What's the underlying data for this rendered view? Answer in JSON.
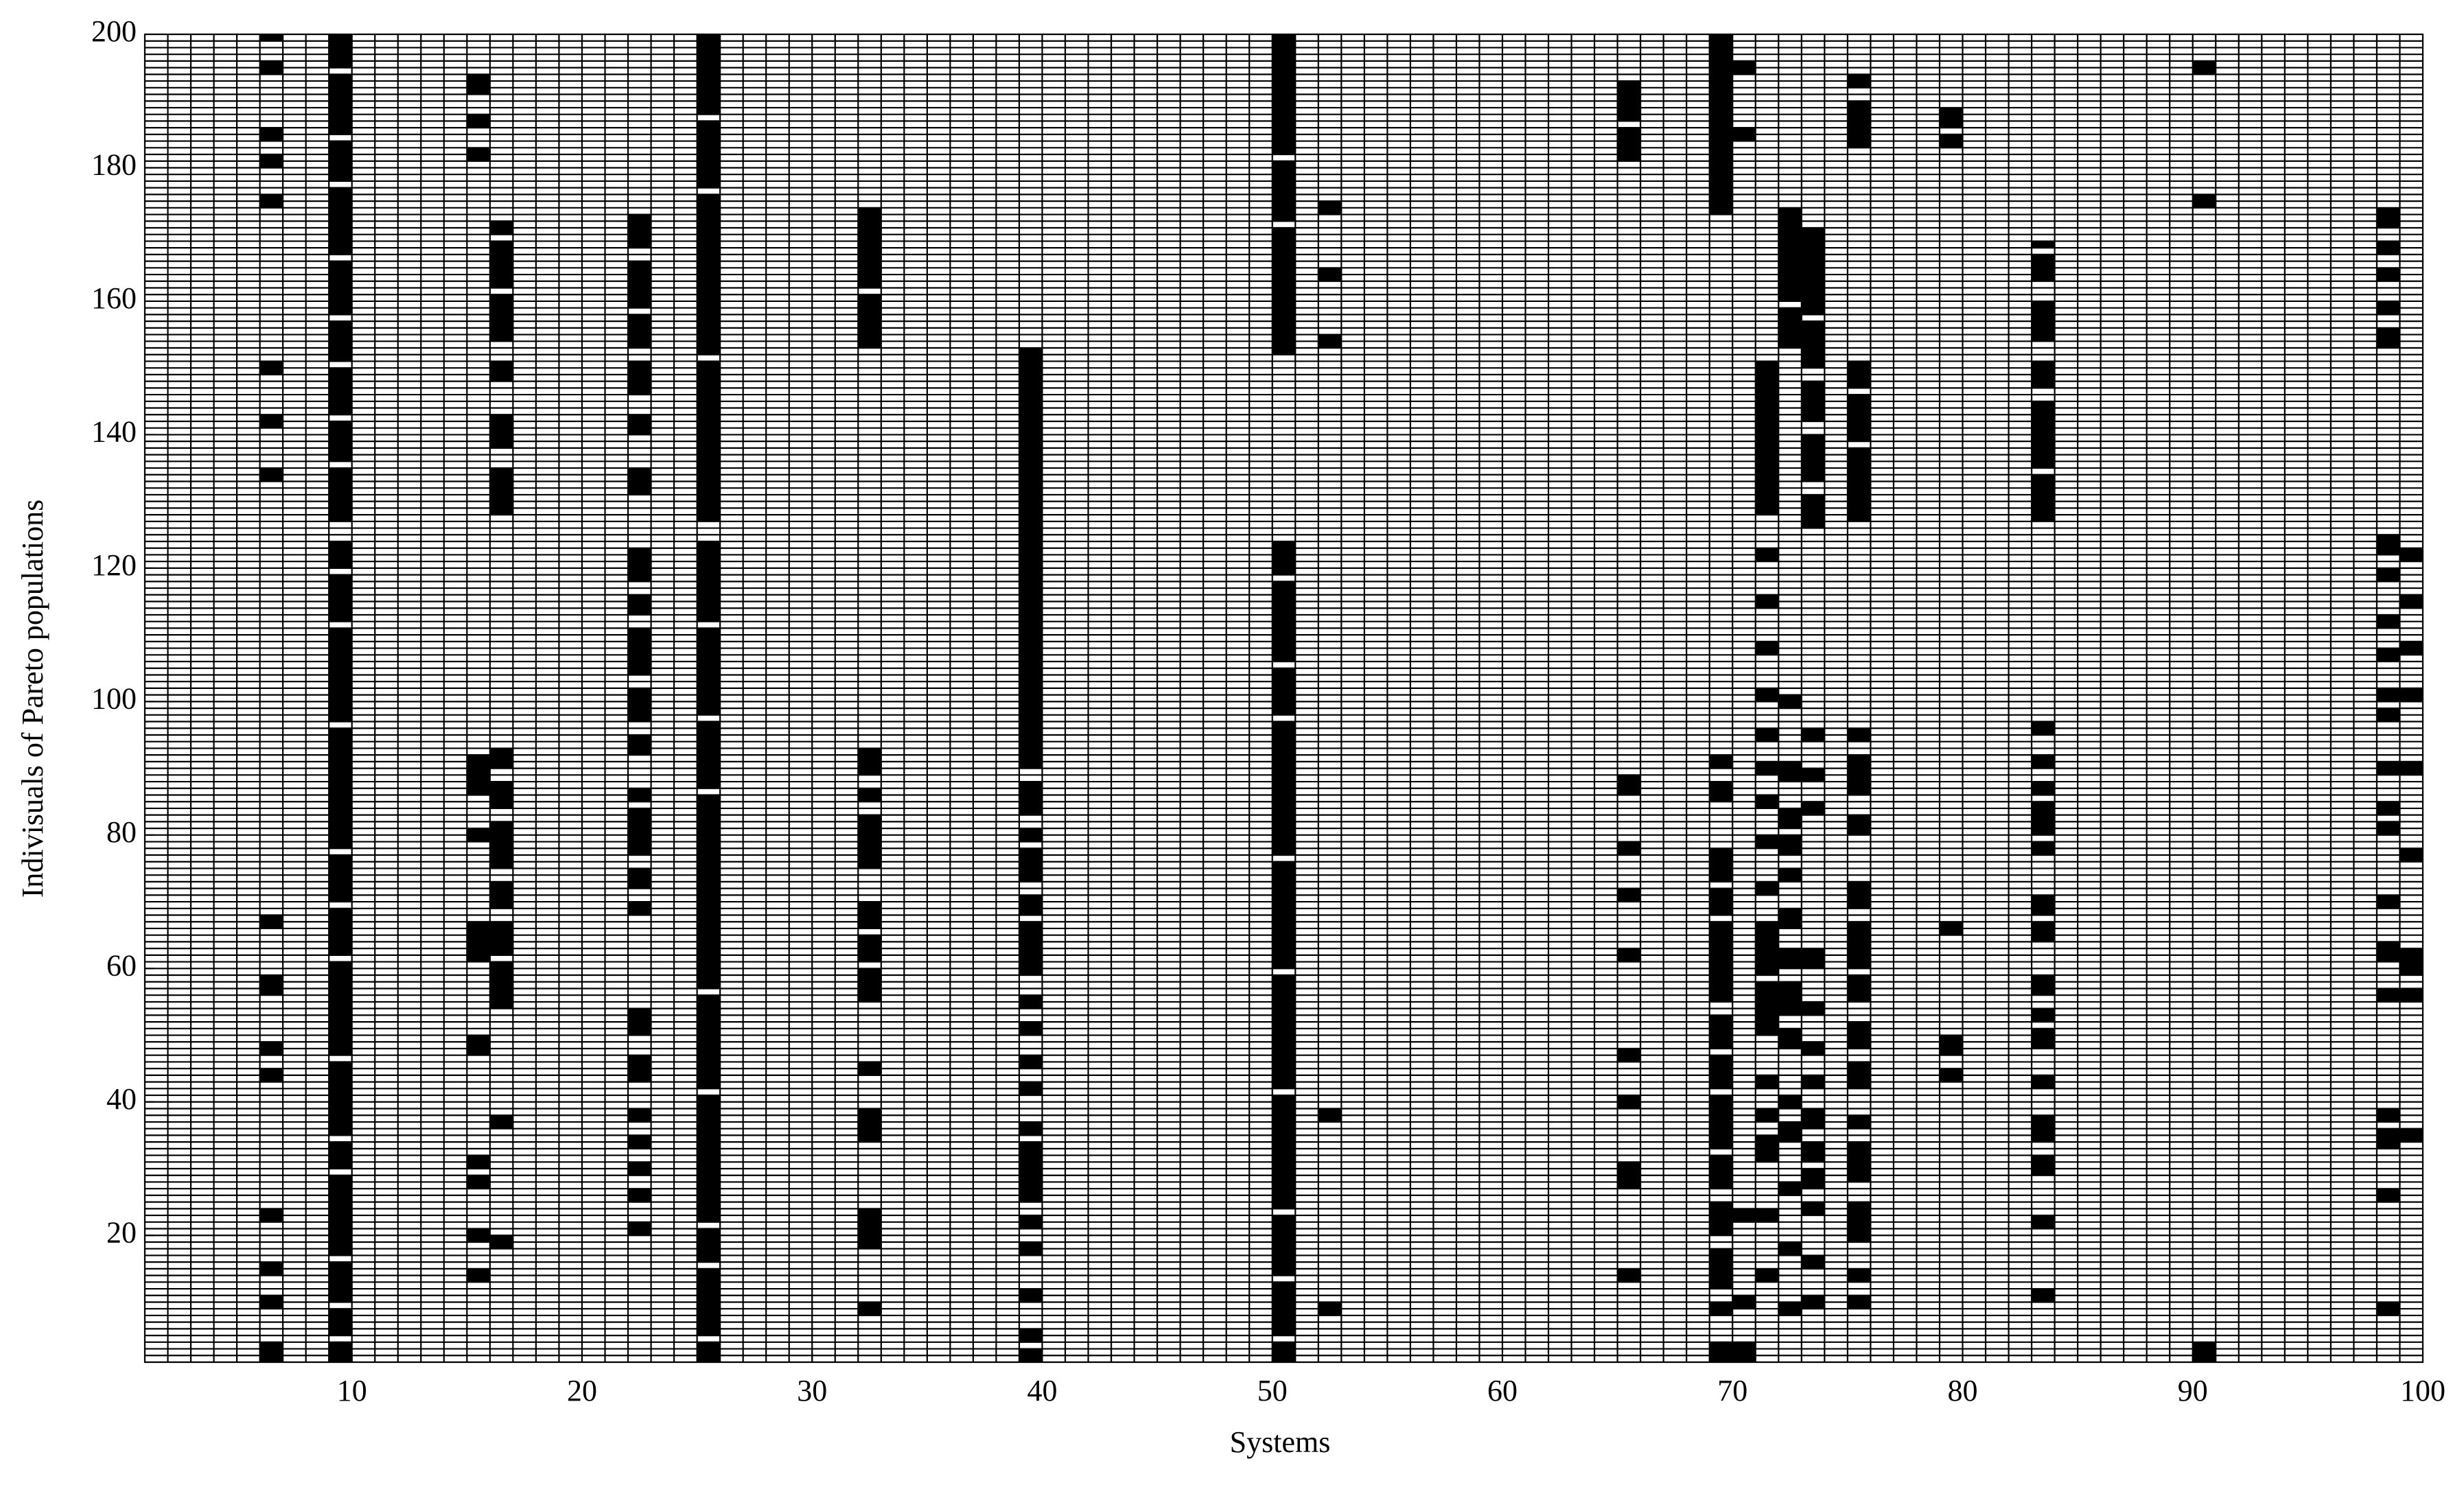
{
  "chart_data": {
    "type": "heatmap",
    "xlabel": "Systems",
    "ylabel": "Indivisuals of Pareto populations",
    "xlim": [
      1,
      100
    ],
    "ylim": [
      1,
      200
    ],
    "xticks": [
      10,
      20,
      30,
      40,
      50,
      60,
      70,
      80,
      90,
      100
    ],
    "yticks": [
      20,
      40,
      60,
      80,
      100,
      120,
      140,
      160,
      180,
      200
    ],
    "color": "#000000",
    "runs": [
      [
        6,
        1,
        3
      ],
      [
        6,
        9,
        10
      ],
      [
        6,
        14,
        15
      ],
      [
        6,
        22,
        23
      ],
      [
        6,
        43,
        44
      ],
      [
        6,
        47,
        48
      ],
      [
        6,
        56,
        58
      ],
      [
        6,
        66,
        67
      ],
      [
        6,
        133,
        134
      ],
      [
        6,
        141,
        142
      ],
      [
        6,
        149,
        150
      ],
      [
        6,
        174,
        175
      ],
      [
        6,
        180,
        181
      ],
      [
        6,
        184,
        185
      ],
      [
        6,
        194,
        195
      ],
      [
        6,
        199,
        199
      ],
      [
        9,
        1,
        3
      ],
      [
        9,
        5,
        8
      ],
      [
        9,
        10,
        15
      ],
      [
        9,
        17,
        28
      ],
      [
        9,
        30,
        33
      ],
      [
        9,
        35,
        45
      ],
      [
        9,
        47,
        60
      ],
      [
        9,
        62,
        68
      ],
      [
        9,
        70,
        76
      ],
      [
        9,
        78,
        95
      ],
      [
        9,
        97,
        110
      ],
      [
        9,
        112,
        118
      ],
      [
        9,
        120,
        123
      ],
      [
        9,
        127,
        134
      ],
      [
        9,
        136,
        141
      ],
      [
        9,
        143,
        149
      ],
      [
        9,
        151,
        156
      ],
      [
        9,
        158,
        165
      ],
      [
        9,
        167,
        176
      ],
      [
        9,
        178,
        183
      ],
      [
        9,
        185,
        193
      ],
      [
        9,
        195,
        199
      ],
      [
        15,
        13,
        14
      ],
      [
        15,
        19,
        20
      ],
      [
        15,
        27,
        28
      ],
      [
        15,
        30,
        31
      ],
      [
        15,
        47,
        49
      ],
      [
        15,
        61,
        66
      ],
      [
        15,
        79,
        80
      ],
      [
        15,
        86,
        91
      ],
      [
        15,
        181,
        182
      ],
      [
        15,
        186,
        187
      ],
      [
        15,
        191,
        193
      ],
      [
        16,
        18,
        19
      ],
      [
        16,
        36,
        37
      ],
      [
        16,
        54,
        60
      ],
      [
        16,
        62,
        66
      ],
      [
        16,
        69,
        72
      ],
      [
        16,
        75,
        81
      ],
      [
        16,
        84,
        87
      ],
      [
        16,
        90,
        92
      ],
      [
        16,
        128,
        134
      ],
      [
        16,
        138,
        142
      ],
      [
        16,
        148,
        150
      ],
      [
        16,
        154,
        160
      ],
      [
        16,
        162,
        168
      ],
      [
        16,
        170,
        171
      ],
      [
        22,
        20,
        21
      ],
      [
        22,
        25,
        26
      ],
      [
        22,
        29,
        30
      ],
      [
        22,
        33,
        34
      ],
      [
        22,
        37,
        38
      ],
      [
        22,
        43,
        46
      ],
      [
        22,
        50,
        53
      ],
      [
        22,
        68,
        69
      ],
      [
        22,
        72,
        74
      ],
      [
        22,
        77,
        83
      ],
      [
        22,
        85,
        86
      ],
      [
        22,
        92,
        94
      ],
      [
        22,
        97,
        101
      ],
      [
        22,
        104,
        110
      ],
      [
        22,
        113,
        115
      ],
      [
        22,
        118,
        122
      ],
      [
        22,
        131,
        134
      ],
      [
        22,
        140,
        142
      ],
      [
        22,
        146,
        150
      ],
      [
        22,
        153,
        157
      ],
      [
        22,
        159,
        165
      ],
      [
        22,
        168,
        172
      ],
      [
        25,
        1,
        3
      ],
      [
        25,
        5,
        14
      ],
      [
        25,
        16,
        20
      ],
      [
        25,
        22,
        40
      ],
      [
        25,
        42,
        55
      ],
      [
        25,
        57,
        85
      ],
      [
        25,
        87,
        96
      ],
      [
        25,
        98,
        110
      ],
      [
        25,
        112,
        123
      ],
      [
        25,
        127,
        150
      ],
      [
        25,
        152,
        175
      ],
      [
        25,
        177,
        186
      ],
      [
        25,
        188,
        199
      ],
      [
        32,
        8,
        9
      ],
      [
        32,
        18,
        23
      ],
      [
        32,
        34,
        38
      ],
      [
        32,
        44,
        45
      ],
      [
        32,
        55,
        59
      ],
      [
        32,
        61,
        64
      ],
      [
        32,
        66,
        69
      ],
      [
        32,
        75,
        82
      ],
      [
        32,
        85,
        86
      ],
      [
        32,
        89,
        92
      ],
      [
        32,
        153,
        160
      ],
      [
        32,
        162,
        173
      ],
      [
        39,
        1,
        2
      ],
      [
        39,
        4,
        5
      ],
      [
        39,
        10,
        11
      ],
      [
        39,
        17,
        18
      ],
      [
        39,
        21,
        22
      ],
      [
        39,
        25,
        33
      ],
      [
        39,
        35,
        36
      ],
      [
        39,
        41,
        42
      ],
      [
        39,
        45,
        46
      ],
      [
        39,
        50,
        51
      ],
      [
        39,
        54,
        55
      ],
      [
        39,
        59,
        66
      ],
      [
        39,
        68,
        70
      ],
      [
        39,
        73,
        77
      ],
      [
        39,
        79,
        80
      ],
      [
        39,
        83,
        87
      ],
      [
        39,
        90,
        152
      ],
      [
        50,
        1,
        3
      ],
      [
        50,
        5,
        12
      ],
      [
        50,
        14,
        22
      ],
      [
        50,
        24,
        40
      ],
      [
        50,
        42,
        58
      ],
      [
        50,
        60,
        75
      ],
      [
        50,
        77,
        96
      ],
      [
        50,
        98,
        104
      ],
      [
        50,
        106,
        117
      ],
      [
        50,
        119,
        123
      ],
      [
        50,
        152,
        170
      ],
      [
        50,
        172,
        180
      ],
      [
        50,
        182,
        199
      ],
      [
        52,
        8,
        9
      ],
      [
        52,
        37,
        38
      ],
      [
        52,
        153,
        154
      ],
      [
        52,
        163,
        164
      ],
      [
        52,
        173,
        174
      ],
      [
        65,
        13,
        14
      ],
      [
        65,
        27,
        30
      ],
      [
        65,
        39,
        40
      ],
      [
        65,
        46,
        47
      ],
      [
        65,
        61,
        62
      ],
      [
        65,
        70,
        71
      ],
      [
        65,
        77,
        78
      ],
      [
        65,
        86,
        88
      ],
      [
        65,
        181,
        185
      ],
      [
        65,
        187,
        192
      ],
      [
        69,
        1,
        3
      ],
      [
        69,
        8,
        9
      ],
      [
        69,
        12,
        17
      ],
      [
        69,
        20,
        24
      ],
      [
        69,
        27,
        31
      ],
      [
        69,
        33,
        40
      ],
      [
        69,
        42,
        46
      ],
      [
        69,
        48,
        52
      ],
      [
        69,
        55,
        66
      ],
      [
        69,
        68,
        71
      ],
      [
        69,
        73,
        77
      ],
      [
        69,
        85,
        87
      ],
      [
        69,
        90,
        91
      ],
      [
        69,
        173,
        199
      ],
      [
        70,
        1,
        3
      ],
      [
        70,
        9,
        10
      ],
      [
        70,
        22,
        23
      ],
      [
        70,
        184,
        185
      ],
      [
        70,
        194,
        195
      ],
      [
        71,
        13,
        14
      ],
      [
        71,
        22,
        23
      ],
      [
        71,
        31,
        34
      ],
      [
        71,
        37,
        38
      ],
      [
        71,
        42,
        43
      ],
      [
        71,
        50,
        57
      ],
      [
        71,
        59,
        66
      ],
      [
        71,
        71,
        72
      ],
      [
        71,
        78,
        79
      ],
      [
        71,
        84,
        85
      ],
      [
        71,
        89,
        90
      ],
      [
        71,
        94,
        95
      ],
      [
        71,
        100,
        101
      ],
      [
        71,
        107,
        108
      ],
      [
        71,
        114,
        115
      ],
      [
        71,
        121,
        122
      ],
      [
        71,
        128,
        150
      ],
      [
        72,
        8,
        9
      ],
      [
        72,
        17,
        18
      ],
      [
        72,
        26,
        27
      ],
      [
        72,
        34,
        36
      ],
      [
        72,
        39,
        40
      ],
      [
        72,
        48,
        50
      ],
      [
        72,
        53,
        57
      ],
      [
        72,
        60,
        62
      ],
      [
        72,
        66,
        68
      ],
      [
        72,
        73,
        74
      ],
      [
        72,
        77,
        79
      ],
      [
        72,
        81,
        83
      ],
      [
        72,
        88,
        90
      ],
      [
        72,
        99,
        100
      ],
      [
        72,
        153,
        158
      ],
      [
        72,
        160,
        173
      ],
      [
        73,
        9,
        10
      ],
      [
        73,
        15,
        16
      ],
      [
        73,
        23,
        24
      ],
      [
        73,
        27,
        29
      ],
      [
        73,
        31,
        33
      ],
      [
        73,
        36,
        38
      ],
      [
        73,
        42,
        43
      ],
      [
        73,
        47,
        48
      ],
      [
        73,
        53,
        54
      ],
      [
        73,
        60,
        62
      ],
      [
        73,
        83,
        84
      ],
      [
        73,
        88,
        89
      ],
      [
        73,
        94,
        95
      ],
      [
        73,
        126,
        130
      ],
      [
        73,
        133,
        139
      ],
      [
        73,
        142,
        147
      ],
      [
        73,
        150,
        156
      ],
      [
        73,
        158,
        170
      ],
      [
        75,
        9,
        10
      ],
      [
        75,
        13,
        14
      ],
      [
        75,
        19,
        24
      ],
      [
        75,
        28,
        33
      ],
      [
        75,
        36,
        37
      ],
      [
        75,
        42,
        45
      ],
      [
        75,
        48,
        51
      ],
      [
        75,
        55,
        58
      ],
      [
        75,
        60,
        66
      ],
      [
        75,
        69,
        72
      ],
      [
        75,
        80,
        82
      ],
      [
        75,
        86,
        91
      ],
      [
        75,
        94,
        95
      ],
      [
        75,
        127,
        137
      ],
      [
        75,
        139,
        145
      ],
      [
        75,
        147,
        150
      ],
      [
        75,
        183,
        189
      ],
      [
        75,
        192,
        193
      ],
      [
        79,
        43,
        44
      ],
      [
        79,
        47,
        49
      ],
      [
        79,
        65,
        66
      ],
      [
        79,
        183,
        184
      ],
      [
        79,
        186,
        188
      ],
      [
        83,
        10,
        11
      ],
      [
        83,
        21,
        22
      ],
      [
        83,
        29,
        31
      ],
      [
        83,
        34,
        37
      ],
      [
        83,
        42,
        43
      ],
      [
        83,
        48,
        50
      ],
      [
        83,
        52,
        53
      ],
      [
        83,
        56,
        58
      ],
      [
        83,
        64,
        66
      ],
      [
        83,
        68,
        70
      ],
      [
        83,
        77,
        78
      ],
      [
        83,
        80,
        84
      ],
      [
        83,
        86,
        87
      ],
      [
        83,
        90,
        91
      ],
      [
        83,
        95,
        96
      ],
      [
        83,
        127,
        133
      ],
      [
        83,
        135,
        144
      ],
      [
        83,
        147,
        150
      ],
      [
        83,
        154,
        159
      ],
      [
        83,
        163,
        166
      ],
      [
        83,
        168,
        168
      ],
      [
        90,
        1,
        3
      ],
      [
        90,
        174,
        175
      ],
      [
        90,
        194,
        195
      ],
      [
        98,
        8,
        9
      ],
      [
        98,
        25,
        26
      ],
      [
        98,
        33,
        35
      ],
      [
        98,
        37,
        38
      ],
      [
        98,
        55,
        56
      ],
      [
        98,
        61,
        63
      ],
      [
        98,
        69,
        70
      ],
      [
        98,
        80,
        81
      ],
      [
        98,
        83,
        84
      ],
      [
        98,
        89,
        90
      ],
      [
        98,
        97,
        98
      ],
      [
        98,
        100,
        101
      ],
      [
        98,
        106,
        107
      ],
      [
        98,
        111,
        112
      ],
      [
        98,
        118,
        119
      ],
      [
        98,
        122,
        124
      ],
      [
        98,
        153,
        155
      ],
      [
        98,
        158,
        159
      ],
      [
        98,
        163,
        164
      ],
      [
        98,
        167,
        168
      ],
      [
        98,
        171,
        173
      ],
      [
        99,
        34,
        35
      ],
      [
        99,
        55,
        56
      ],
      [
        99,
        59,
        62
      ],
      [
        99,
        76,
        77
      ],
      [
        99,
        89,
        90
      ],
      [
        99,
        100,
        101
      ],
      [
        99,
        107,
        108
      ],
      [
        99,
        114,
        115
      ],
      [
        99,
        121,
        122
      ]
    ]
  }
}
